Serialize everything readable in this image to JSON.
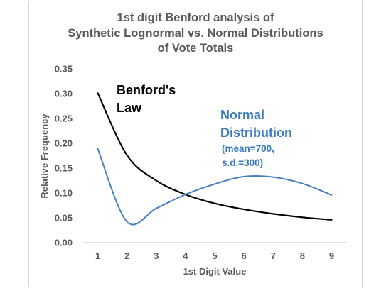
{
  "chart_data": {
    "type": "line",
    "title_lines": [
      "1st digit Benford analysis of",
      "Synthetic Lognormal vs. Normal Distributions",
      "of Vote Totals"
    ],
    "xlabel": "1st Digit Value",
    "ylabel": "Relative Frequency",
    "x": [
      1,
      2,
      3,
      4,
      5,
      6,
      7,
      8,
      9
    ],
    "x_ticks": [
      "1",
      "2",
      "3",
      "4",
      "5",
      "6",
      "7",
      "8",
      "9"
    ],
    "xlim": [
      0.5,
      9.5
    ],
    "ylim": [
      0,
      0.35
    ],
    "y_ticks": [
      "0.00",
      "0.05",
      "0.10",
      "0.15",
      "0.20",
      "0.25",
      "0.30",
      "0.35"
    ],
    "grid": false,
    "series": [
      {
        "name": "Benford's Law",
        "color": "#000000",
        "values": [
          0.301,
          0.176,
          0.125,
          0.097,
          0.079,
          0.067,
          0.058,
          0.051,
          0.046
        ]
      },
      {
        "name": "Normal Distribution",
        "color": "#4a7fc1",
        "values": [
          0.189,
          0.042,
          0.069,
          0.097,
          0.118,
          0.133,
          0.132,
          0.119,
          0.096
        ]
      }
    ],
    "annotations": {
      "benford_line1": "Benford's",
      "benford_line2": "Law",
      "normal_line1": "Normal",
      "normal_line2": "Distribution",
      "normal_params1": "(mean=700,",
      "normal_params2": "s.d.=300)"
    }
  }
}
